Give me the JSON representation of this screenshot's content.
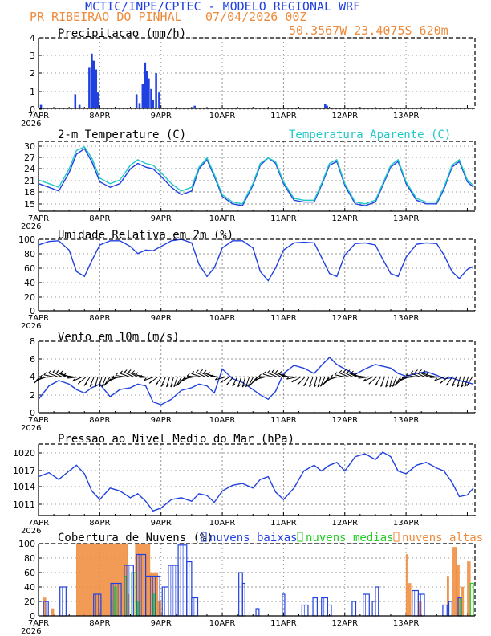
{
  "header": {
    "title": "MCTIC/INPE/CPTEC - MODELO REGIONAL WRF",
    "location": "PR RIBEIRAO DO PINHAL",
    "run": "07/04/2026 00Z",
    "coords": "50.3567W 23.4075S 620m"
  },
  "colors": {
    "blue": "#2040e0",
    "cyan": "#20c8c8",
    "orange": "#ee8a3a",
    "green": "#22cc22",
    "black": "#000000"
  },
  "time_axis": {
    "start_day": 7,
    "days": 7.125,
    "tick_labels": [
      "7APR",
      "8APR",
      "9APR",
      "10APR",
      "11APR",
      "12APR",
      "13APR"
    ],
    "year_label": "2026"
  },
  "chart_data": [
    {
      "type": "bar",
      "title": "Precipitacao (mm/h)",
      "ylim": [
        0,
        4
      ],
      "yticks": [
        "0",
        "1",
        "2",
        "3",
        "4"
      ],
      "series": [
        {
          "color": "#2040e0",
          "x": [
            7.04,
            7.6,
            7.67,
            7.83,
            7.87,
            7.9,
            7.94,
            7.97,
            8.6,
            8.65,
            8.7,
            8.74,
            8.77,
            8.8,
            8.84,
            8.87,
            8.92,
            8.97,
            9.55,
            11.68,
            11.71
          ],
          "values": [
            0.2,
            0.8,
            0.2,
            2.3,
            3.1,
            2.7,
            2.2,
            0.9,
            0.8,
            0.3,
            1.4,
            2.6,
            2.1,
            1.7,
            1.1,
            0.5,
            2.0,
            0.9,
            0.15,
            0.25,
            0.15
          ]
        }
      ]
    },
    {
      "type": "line",
      "title": "2-m Temperature (C)",
      "legend": "Temperatura Aparente (C)",
      "ylim": [
        13,
        32
      ],
      "yticks": [
        "15",
        "18",
        "21",
        "24",
        "27",
        "30"
      ],
      "x": [
        7.0,
        7.17,
        7.33,
        7.5,
        7.62,
        7.75,
        7.87,
        8.0,
        8.17,
        8.33,
        8.5,
        8.62,
        8.75,
        8.87,
        9.0,
        9.17,
        9.33,
        9.5,
        9.62,
        9.75,
        9.87,
        10.0,
        10.17,
        10.33,
        10.5,
        10.62,
        10.75,
        10.87,
        11.0,
        11.17,
        11.33,
        11.5,
        11.62,
        11.75,
        11.87,
        12.0,
        12.17,
        12.33,
        12.5,
        12.62,
        12.75,
        12.87,
        13.0,
        13.17,
        13.33,
        13.5,
        13.62,
        13.75,
        13.87,
        14.0,
        14.1
      ],
      "series": [
        {
          "color": "#2040e0",
          "values": [
            20.5,
            19.5,
            18.5,
            23.5,
            28.5,
            30.0,
            26.5,
            21.0,
            19.5,
            20.5,
            24.5,
            26.0,
            25.0,
            24.5,
            22.5,
            19.5,
            17.5,
            18.5,
            24.5,
            27.0,
            22.5,
            17.0,
            15.0,
            14.5,
            20.0,
            25.5,
            27.5,
            26.0,
            20.5,
            16.0,
            15.5,
            15.5,
            20.0,
            25.5,
            26.5,
            20.0,
            15.0,
            14.5,
            15.5,
            20.0,
            25.0,
            26.5,
            20.5,
            16.0,
            15.0,
            15.0,
            19.0,
            25.0,
            26.5,
            21.0,
            19.5
          ]
        },
        {
          "color": "#20c8c8",
          "values": [
            21.5,
            20.5,
            19.5,
            24.5,
            29.5,
            30.5,
            27.5,
            22.0,
            20.5,
            21.5,
            25.5,
            27.0,
            26.0,
            25.5,
            23.5,
            20.5,
            18.5,
            19.5,
            25.0,
            27.5,
            23.0,
            17.5,
            15.5,
            15.0,
            20.5,
            26.0,
            27.5,
            26.5,
            21.0,
            16.5,
            16.0,
            16.0,
            20.5,
            26.0,
            27.0,
            20.5,
            15.5,
            15.0,
            16.0,
            20.5,
            25.5,
            27.0,
            21.0,
            16.5,
            15.5,
            15.5,
            19.5,
            25.5,
            27.0,
            21.5,
            20.0
          ]
        }
      ]
    },
    {
      "type": "line",
      "title": "Umidade Relativa em 2m (%)",
      "ylim": [
        0,
        100
      ],
      "yticks": [
        "0",
        "20",
        "40",
        "60",
        "80",
        "100"
      ],
      "x": [
        7.0,
        7.17,
        7.33,
        7.5,
        7.62,
        7.75,
        7.87,
        8.0,
        8.17,
        8.33,
        8.5,
        8.62,
        8.75,
        8.87,
        9.0,
        9.17,
        9.33,
        9.5,
        9.62,
        9.75,
        9.87,
        10.0,
        10.17,
        10.33,
        10.5,
        10.62,
        10.75,
        10.87,
        11.0,
        11.17,
        11.33,
        11.5,
        11.62,
        11.75,
        11.87,
        12.0,
        12.17,
        12.33,
        12.5,
        12.62,
        12.75,
        12.87,
        13.0,
        13.17,
        13.33,
        13.5,
        13.62,
        13.75,
        13.87,
        14.0,
        14.1
      ],
      "series": [
        {
          "color": "#2040e0",
          "values": [
            92,
            97,
            98,
            85,
            55,
            48,
            70,
            92,
            98,
            98,
            90,
            80,
            85,
            84,
            90,
            98,
            100,
            95,
            65,
            48,
            60,
            88,
            98,
            98,
            88,
            55,
            42,
            60,
            85,
            95,
            96,
            95,
            75,
            52,
            48,
            78,
            94,
            95,
            92,
            72,
            52,
            48,
            75,
            93,
            95,
            94,
            78,
            55,
            45,
            58,
            62
          ]
        }
      ]
    },
    {
      "type": "line",
      "title": "Vento em 10m (m/s)",
      "ylim": [
        0,
        8
      ],
      "yticks": [
        "0",
        "2",
        "4",
        "6",
        "8"
      ],
      "x": [
        7.0,
        7.17,
        7.33,
        7.5,
        7.62,
        7.75,
        7.87,
        8.0,
        8.17,
        8.33,
        8.5,
        8.62,
        8.75,
        8.87,
        9.0,
        9.17,
        9.33,
        9.5,
        9.62,
        9.75,
        9.87,
        10.0,
        10.17,
        10.33,
        10.5,
        10.62,
        10.75,
        10.87,
        11.0,
        11.17,
        11.33,
        11.5,
        11.62,
        11.75,
        11.87,
        12.0,
        12.17,
        12.33,
        12.5,
        12.62,
        12.75,
        12.87,
        13.0,
        13.17,
        13.33,
        13.5,
        13.62,
        13.75,
        13.87,
        14.0,
        14.1
      ],
      "series": [
        {
          "color": "#2040e0",
          "values": [
            1.5,
            3.0,
            3.6,
            3.2,
            2.6,
            2.2,
            2.8,
            3.2,
            1.8,
            2.6,
            2.8,
            3.2,
            3.0,
            1.2,
            0.9,
            1.5,
            2.5,
            2.8,
            3.2,
            3.0,
            2.2,
            4.9,
            3.8,
            3.4,
            2.6,
            2.0,
            1.5,
            2.4,
            4.4,
            5.3,
            5.0,
            4.4,
            5.3,
            6.2,
            5.4,
            4.9,
            4.3,
            4.9,
            5.4,
            5.2,
            5.0,
            4.4,
            4.1,
            4.4,
            4.6,
            4.2,
            3.8,
            3.9,
            3.6,
            3.4,
            3.2
          ]
        }
      ]
    },
    {
      "type": "line",
      "title": "Pressao ao Nivel Medio do Mar (hPa)",
      "ylim": [
        1009.7,
        1022.2
      ],
      "yticks": [
        "1011",
        "1014",
        "1017",
        "1020"
      ],
      "x": [
        7.0,
        7.17,
        7.33,
        7.5,
        7.62,
        7.75,
        7.87,
        8.0,
        8.17,
        8.33,
        8.5,
        8.62,
        8.75,
        8.87,
        9.0,
        9.17,
        9.33,
        9.5,
        9.62,
        9.75,
        9.87,
        10.0,
        10.17,
        10.33,
        10.5,
        10.62,
        10.75,
        10.87,
        11.0,
        11.17,
        11.33,
        11.5,
        11.62,
        11.75,
        11.87,
        12.0,
        12.17,
        12.33,
        12.5,
        12.62,
        12.75,
        12.87,
        13.0,
        13.17,
        13.33,
        13.5,
        13.62,
        13.75,
        13.87,
        14.0,
        14.1
      ],
      "series": [
        {
          "color": "#2040e0",
          "values": [
            1016.5,
            1017.2,
            1016.0,
            1017.5,
            1018.5,
            1017.0,
            1014.0,
            1012.5,
            1014.5,
            1014.0,
            1012.8,
            1013.5,
            1012.2,
            1010.5,
            1011.0,
            1012.5,
            1012.8,
            1012.2,
            1013.5,
            1013.2,
            1012.0,
            1014.0,
            1015.0,
            1015.3,
            1014.5,
            1016.0,
            1016.5,
            1013.8,
            1012.5,
            1014.5,
            1017.5,
            1018.5,
            1017.5,
            1018.5,
            1019.0,
            1017.5,
            1020.0,
            1020.5,
            1019.5,
            1020.8,
            1020.0,
            1017.5,
            1017.0,
            1018.5,
            1019.0,
            1018.0,
            1017.5,
            1015.5,
            1013.0,
            1013.3,
            1014.5
          ]
        }
      ]
    },
    {
      "type": "bar",
      "title": "Cobertura de Nuvens (%)",
      "ylim": [
        0,
        100
      ],
      "yticks": [
        "0",
        "20",
        "40",
        "60",
        "80",
        "100"
      ],
      "legend": [
        "nuvens baixas",
        "nuvens medias",
        "nuvens altas"
      ],
      "series": [
        {
          "name": "nuvens altas",
          "color": "#ee8a3a",
          "segments": [
            [
              7.07,
              7.12,
              25
            ],
            [
              7.2,
              7.25,
              10
            ],
            [
              7.62,
              8.45,
              100
            ],
            [
              8.45,
              8.48,
              30
            ],
            [
              8.58,
              8.82,
              100
            ],
            [
              8.82,
              8.95,
              60
            ],
            [
              8.95,
              9.0,
              20
            ],
            [
              13.0,
              13.03,
              85
            ],
            [
              13.03,
              13.08,
              45
            ],
            [
              13.2,
              13.25,
              20
            ],
            [
              13.67,
              13.7,
              55
            ],
            [
              13.75,
              13.82,
              95
            ],
            [
              13.82,
              13.87,
              70
            ],
            [
              13.9,
              13.94,
              40
            ],
            [
              14.0,
              14.05,
              75
            ]
          ]
        },
        {
          "name": "nuvens medias",
          "color": "#22cc22",
          "segments": [
            [
              8.18,
              8.2,
              20
            ],
            [
              8.24,
              8.27,
              40
            ],
            [
              8.4,
              8.43,
              55
            ],
            [
              8.52,
              8.6,
              60
            ],
            [
              8.62,
              8.64,
              20
            ],
            [
              8.88,
              8.9,
              30
            ],
            [
              13.88,
              13.9,
              25
            ],
            [
              14.05,
              14.1,
              45
            ]
          ]
        },
        {
          "name": "nuvens baixas",
          "color": "#2040e0",
          "segments": [
            [
              7.08,
              7.16,
              20
            ],
            [
              7.35,
              7.45,
              40
            ],
            [
              7.9,
              8.02,
              30
            ],
            [
              8.18,
              8.35,
              45
            ],
            [
              8.4,
              8.55,
              70
            ],
            [
              8.6,
              8.75,
              85
            ],
            [
              8.75,
              8.98,
              55
            ],
            [
              9.02,
              9.12,
              40
            ],
            [
              9.12,
              9.28,
              70
            ],
            [
              9.28,
              9.42,
              98
            ],
            [
              9.42,
              9.5,
              75
            ],
            [
              9.5,
              9.6,
              25
            ],
            [
              10.27,
              10.33,
              60
            ],
            [
              10.33,
              10.37,
              45
            ],
            [
              10.55,
              10.6,
              10
            ],
            [
              10.98,
              11.02,
              30
            ],
            [
              11.3,
              11.4,
              15
            ],
            [
              11.48,
              11.55,
              25
            ],
            [
              11.62,
              11.72,
              25
            ],
            [
              11.72,
              11.78,
              15
            ],
            [
              12.12,
              12.18,
              20
            ],
            [
              12.3,
              12.4,
              30
            ],
            [
              12.45,
              12.5,
              20
            ],
            [
              12.5,
              12.55,
              40
            ],
            [
              13.1,
              13.2,
              35
            ],
            [
              13.2,
              13.3,
              30
            ],
            [
              13.6,
              13.67,
              15
            ],
            [
              13.7,
              13.75,
              20
            ],
            [
              13.85,
              13.9,
              25
            ]
          ]
        }
      ]
    }
  ]
}
